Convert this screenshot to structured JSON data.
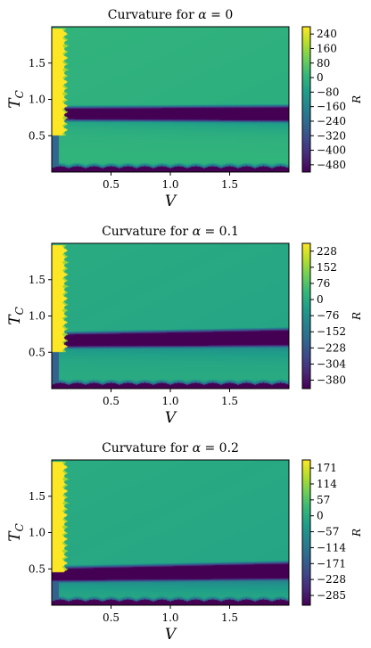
{
  "chart_data": [
    {
      "type": "heatmap",
      "title": "Curvature for α = 0",
      "title_prefix": "Curvature for",
      "title_symbol": "α",
      "title_value": "= 0",
      "xlabel": "V",
      "ylabel": "T_C",
      "xlim": [
        0.0,
        2.0
      ],
      "ylim": [
        0.0,
        2.0
      ],
      "x_ticks": [
        "0.5",
        "1.0",
        "1.5"
      ],
      "y_ticks": [
        "0.5",
        "1.0",
        "1.5"
      ],
      "colorbar_label": "R",
      "colorbar_range": [
        -520,
        280
      ],
      "colorbar_ticks": [
        "240",
        "160",
        "80",
        "0",
        "−80",
        "−160",
        "−240",
        "−320",
        "−400",
        "−480"
      ],
      "colorbar_values": [
        240,
        160,
        80,
        0,
        -80,
        -160,
        -240,
        -320,
        -400,
        -480
      ],
      "colormap": [
        "#440154",
        "#482878",
        "#3e4989",
        "#31688e",
        "#26828e",
        "#1f9e89",
        "#35b779",
        "#6ece58",
        "#b5de2b",
        "#fde725"
      ],
      "background_value": 0,
      "features": {
        "high_band_T": [
          0.5,
          1.98
        ],
        "high_band_V_max": 0.14,
        "low_band_T_left": 0.8,
        "low_band_T_right": 0.8,
        "low_band_width": 0.08,
        "bottom_strip_T": 0.05,
        "min_value": -520,
        "max_value": 280
      }
    },
    {
      "type": "heatmap",
      "title": "Curvature for α = 0.1",
      "title_prefix": "Curvature for",
      "title_symbol": "α",
      "title_value": "= 0.1",
      "xlabel": "V",
      "ylabel": "T_C",
      "xlim": [
        0.0,
        2.0
      ],
      "ylim": [
        0.0,
        2.0
      ],
      "x_ticks": [
        "0.5",
        "1.0",
        "1.5"
      ],
      "y_ticks": [
        "0.5",
        "1.0",
        "1.5"
      ],
      "colorbar_label": "R",
      "colorbar_range": [
        -420,
        265
      ],
      "colorbar_ticks": [
        "228",
        "152",
        "76",
        "0",
        "−76",
        "−152",
        "−228",
        "−304",
        "−380"
      ],
      "colorbar_values": [
        228,
        152,
        76,
        0,
        -76,
        -152,
        -228,
        -304,
        -380
      ],
      "colormap": [
        "#440154",
        "#482878",
        "#3e4989",
        "#31688e",
        "#26828e",
        "#1f9e89",
        "#35b779",
        "#6ece58",
        "#b5de2b",
        "#fde725"
      ],
      "background_value": 0,
      "features": {
        "high_band_T": [
          0.5,
          1.98
        ],
        "high_band_V_max": 0.14,
        "low_band_T_left": 0.66,
        "low_band_T_right": 0.7,
        "low_band_width": 0.09,
        "bottom_strip_T": 0.05,
        "min_value": -420,
        "max_value": 265
      }
    },
    {
      "type": "heatmap",
      "title": "Curvature for α = 0.2",
      "title_prefix": "Curvature for",
      "title_symbol": "α",
      "title_value": "= 0.2",
      "xlabel": "V",
      "ylabel": "T_C",
      "xlim": [
        0.0,
        2.0
      ],
      "ylim": [
        0.0,
        2.0
      ],
      "x_ticks": [
        "0.5",
        "1.0",
        "1.5"
      ],
      "y_ticks": [
        "0.5",
        "1.0",
        "1.5"
      ],
      "colorbar_label": "R",
      "colorbar_range": [
        -320,
        200
      ],
      "colorbar_ticks": [
        "171",
        "114",
        "57",
        "0",
        "−57",
        "−114",
        "−171",
        "−228",
        "−285"
      ],
      "colorbar_values": [
        171,
        114,
        57,
        0,
        -57,
        -114,
        -171,
        -228,
        -285
      ],
      "colormap": [
        "#440154",
        "#482878",
        "#3e4989",
        "#31688e",
        "#26828e",
        "#1f9e89",
        "#35b779",
        "#6ece58",
        "#b5de2b",
        "#fde725"
      ],
      "background_value": 0,
      "features": {
        "high_band_T": [
          0.45,
          1.98
        ],
        "high_band_V_max": 0.14,
        "low_band_T_left": 0.42,
        "low_band_T_right": 0.47,
        "low_band_width": 0.09,
        "bottom_strip_T": 0.05,
        "min_value": -320,
        "max_value": 200
      }
    }
  ]
}
